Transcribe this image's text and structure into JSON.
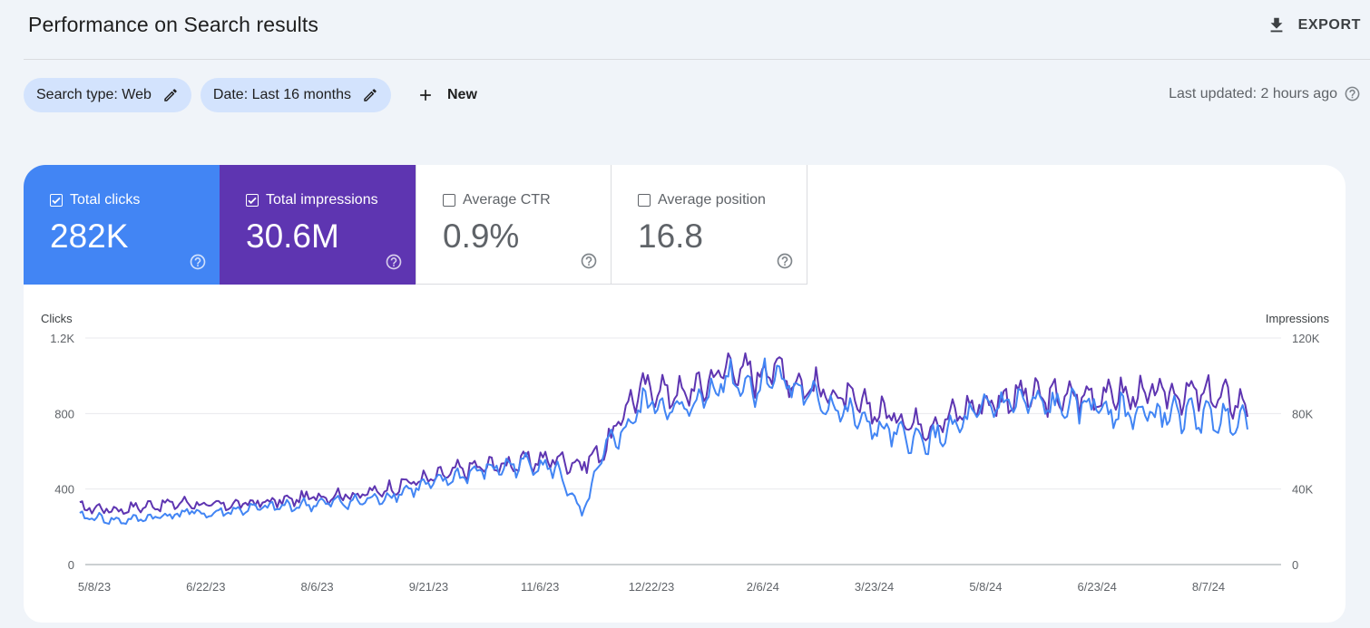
{
  "header": {
    "title": "Performance on Search results",
    "export_label": "EXPORT",
    "export_icon": "download-icon"
  },
  "filters": {
    "chips": [
      {
        "label": "Search type: Web",
        "icon": "pencil-icon"
      },
      {
        "label": "Date: Last 16 months",
        "icon": "pencil-icon"
      }
    ],
    "new_label": "New",
    "new_icon": "plus-icon",
    "last_updated": "Last updated: 2 hours ago"
  },
  "metrics": [
    {
      "label": "Total clicks",
      "value": "282K",
      "checked": true,
      "color": "#4285f4"
    },
    {
      "label": "Total impressions",
      "value": "30.6M",
      "checked": true,
      "color": "#5e35b1"
    },
    {
      "label": "Average CTR",
      "value": "0.9%",
      "checked": false
    },
    {
      "label": "Average position",
      "value": "16.8",
      "checked": false
    }
  ],
  "chart_data": {
    "type": "line",
    "left_axis_title": "Clicks",
    "right_axis_title": "Impressions",
    "left_ticks": [
      "0",
      "400",
      "800",
      "1.2K"
    ],
    "right_ticks": [
      "0",
      "40K",
      "80K",
      "120K"
    ],
    "left_ylim": [
      0,
      1200
    ],
    "right_ylim": [
      0,
      120000
    ],
    "x_tick_labels": [
      "5/8/23",
      "6/22/23",
      "8/6/23",
      "9/21/23",
      "11/6/23",
      "12/22/23",
      "2/6/24",
      "3/23/24",
      "5/8/24",
      "6/23/24",
      "8/7/24"
    ],
    "grid": true,
    "x_days_from_first_tick": [
      0,
      10,
      20,
      30,
      40,
      45,
      60,
      70,
      80,
      90,
      100,
      110,
      120,
      130,
      140,
      150,
      160,
      170,
      180,
      190,
      200,
      210,
      220,
      225,
      230,
      240,
      250,
      260,
      270,
      275,
      280,
      290,
      300,
      310,
      320,
      330,
      340,
      350,
      360,
      370,
      380,
      390,
      400,
      410,
      420,
      430,
      440,
      450,
      460,
      470,
      473
    ],
    "series": [
      {
        "name": "Clicks",
        "axis": "left",
        "color": "#4285f4",
        "values": [
          250,
          230,
          245,
          260,
          280,
          265,
          290,
          300,
          310,
          320,
          330,
          335,
          360,
          400,
          430,
          470,
          500,
          520,
          540,
          500,
          260,
          620,
          750,
          850,
          860,
          800,
          890,
          1000,
          940,
          980,
          1020,
          900,
          860,
          790,
          720,
          680,
          650,
          700,
          780,
          850,
          860,
          840,
          830,
          850,
          820,
          790,
          800,
          790,
          770,
          780,
          790
        ]
      },
      {
        "name": "Impressions",
        "axis": "right",
        "color": "#5e35b1",
        "values": [
          30000,
          29000,
          31000,
          32000,
          33000,
          31000,
          32000,
          33000,
          34000,
          36000,
          37000,
          37000,
          40000,
          44000,
          46000,
          50000,
          52000,
          53000,
          55000,
          56000,
          53000,
          62000,
          88000,
          92000,
          94000,
          90000,
          95000,
          106000,
          100000,
          104000,
          105000,
          95000,
          92000,
          86000,
          82000,
          78000,
          74000,
          78000,
          84000,
          87000,
          90000,
          88000,
          89000,
          90000,
          90000,
          89000,
          91000,
          90000,
          89000,
          86000,
          84000
        ]
      }
    ]
  }
}
